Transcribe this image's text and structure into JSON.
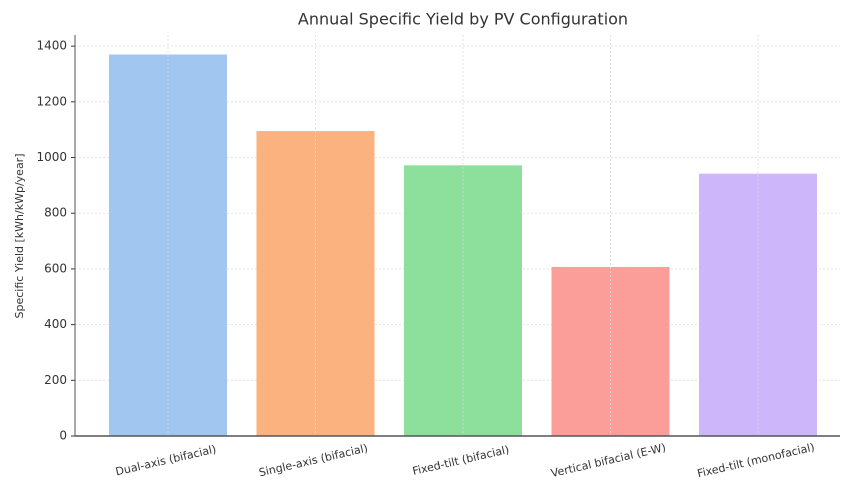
{
  "chart_data": {
    "type": "bar",
    "title": "Annual Specific Yield by PV Configuration",
    "y_label": "Specific Yield [kWh/kWp/year]",
    "categories": [
      "Dual-axis (bifacial)",
      "Single-axis (bifacial)",
      "Fixed-tilt (bifacial)",
      "Vertical bifacial (E-W)",
      "Fixed-tilt (monofacial)"
    ],
    "values": [
      1370,
      1095,
      972,
      607,
      942
    ],
    "colors": [
      "#a1c6f0",
      "#fbb27f",
      "#8de09b",
      "#fb9e9a",
      "#cdb6fa"
    ],
    "ylim": [
      0,
      1440
    ],
    "yticks": [
      0,
      200,
      400,
      600,
      800,
      1000,
      1200,
      1400
    ],
    "grid": true
  }
}
